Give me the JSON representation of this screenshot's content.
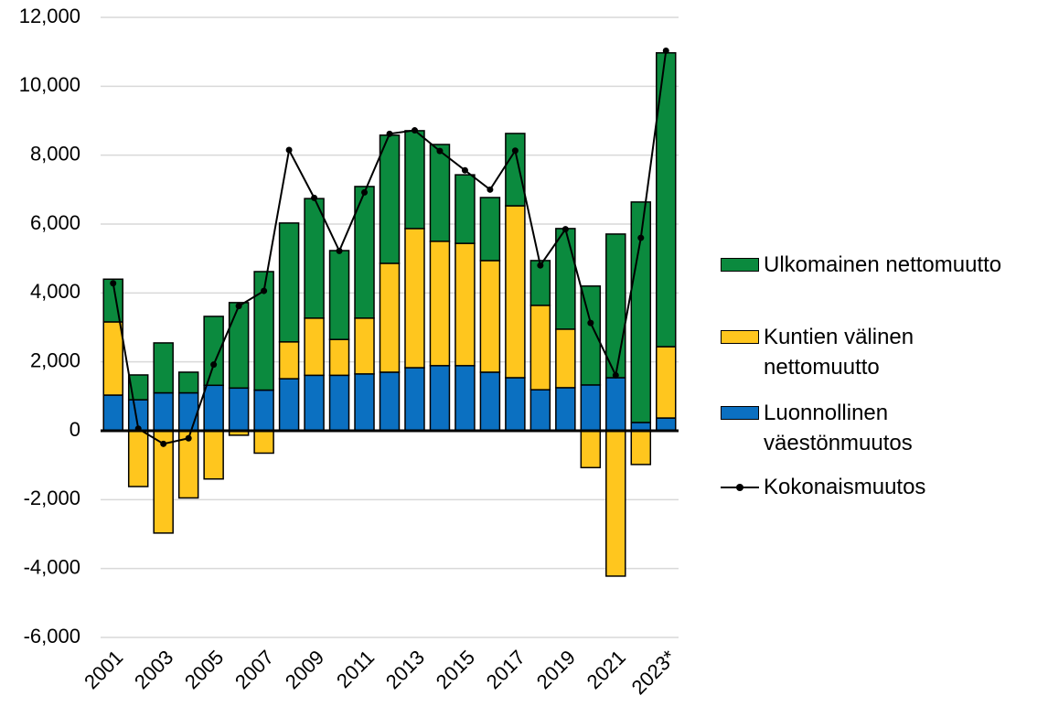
{
  "chart_data": {
    "type": "bar",
    "stacked": true,
    "categories": [
      "2001",
      null,
      "2003",
      null,
      "2005",
      null,
      "2007",
      null,
      "2009",
      null,
      "2011",
      null,
      "2013",
      null,
      "2015",
      null,
      "2017",
      null,
      "2019",
      null,
      "2021",
      null,
      "2023*"
    ],
    "series": [
      {
        "name": "Ulkomainen nettomuutto",
        "color": "#0b8a3e",
        "values": [
          1240,
          720,
          1450,
          600,
          2000,
          2480,
          3440,
          3450,
          3470,
          2580,
          3820,
          3720,
          2840,
          2810,
          1990,
          1830,
          2100,
          1300,
          2920,
          2870,
          4170,
          6400,
          8530
        ]
      },
      {
        "name": "Kuntien välinen nettomuutto",
        "color": "#ffc61e",
        "values": [
          2125,
          -1620,
          -2970,
          -1950,
          -1400,
          -130,
          -650,
          1070,
          1660,
          1040,
          1620,
          3160,
          4040,
          3610,
          3550,
          3240,
          4990,
          2450,
          1700,
          -1070,
          -4220,
          -980,
          2070
        ]
      },
      {
        "name": "Luonnollinen väestönmuutos",
        "color": "#0b70c1",
        "values": [
          1035,
          900,
          1100,
          1100,
          1320,
          1240,
          1180,
          1510,
          1610,
          1610,
          1650,
          1700,
          1830,
          1890,
          1890,
          1700,
          1540,
          1190,
          1250,
          1330,
          1540,
          240,
          370
        ]
      },
      {
        "name": "Kokonaismuutos",
        "type": "line",
        "color": "#000000",
        "values": [
          4280,
          60,
          -380,
          -220,
          1920,
          3620,
          4060,
          8150,
          6760,
          5220,
          6920,
          8620,
          8720,
          8120,
          7560,
          7000,
          8130,
          4800,
          5850,
          3130,
          1610,
          5600,
          11030
        ]
      }
    ],
    "ylim": [
      -6000,
      12000
    ],
    "yticks": [
      {
        "value": -6000,
        "label": "-6,000"
      },
      {
        "value": -4000,
        "label": "-4,000"
      },
      {
        "value": -2000,
        "label": "-2,000"
      },
      0,
      {
        "value": 2000,
        "label": "2,000"
      },
      {
        "value": 4000,
        "label": "4,000"
      },
      {
        "value": 6000,
        "label": "6,000"
      },
      {
        "value": 8000,
        "label": "8,000"
      },
      {
        "value": 10000,
        "label": "10,000"
      },
      {
        "value": 12000,
        "label": "12,000"
      }
    ],
    "grid": true,
    "legend": "right"
  }
}
